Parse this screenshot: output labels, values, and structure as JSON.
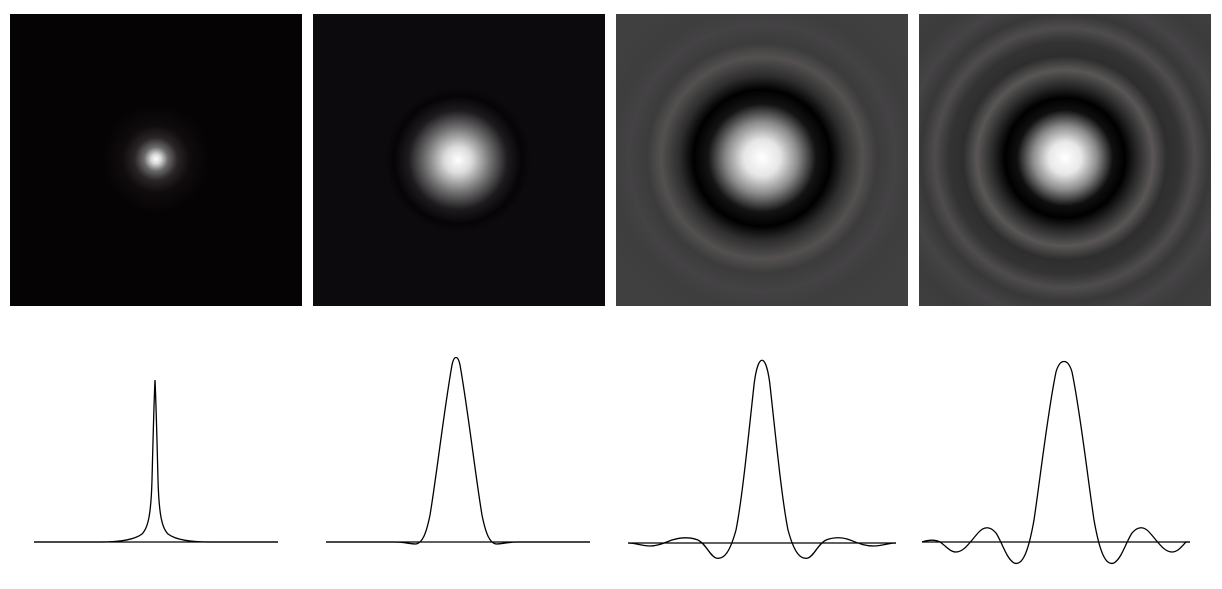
{
  "figure": {
    "panels": [
      {
        "id": "1",
        "kind": "spike",
        "background": "#050304",
        "cutoff": 0.15,
        "ringing": 0.0,
        "rings": 0
      },
      {
        "id": "2",
        "kind": "gaussian",
        "background": "#0d0a0e",
        "cutoff": 0.45,
        "ringing": 0.02,
        "rings": 1
      },
      {
        "id": "3",
        "kind": "ringing",
        "background": "#404040",
        "cutoff": 0.65,
        "ringing": 0.12,
        "rings": 3
      },
      {
        "id": "4",
        "kind": "ringing",
        "background": "#3e3e3e",
        "cutoff": 0.75,
        "ringing": 0.18,
        "rings": 4
      }
    ],
    "colors": {
      "page": "#ffffff",
      "curve": "#000000",
      "axis": "#000000"
    }
  }
}
